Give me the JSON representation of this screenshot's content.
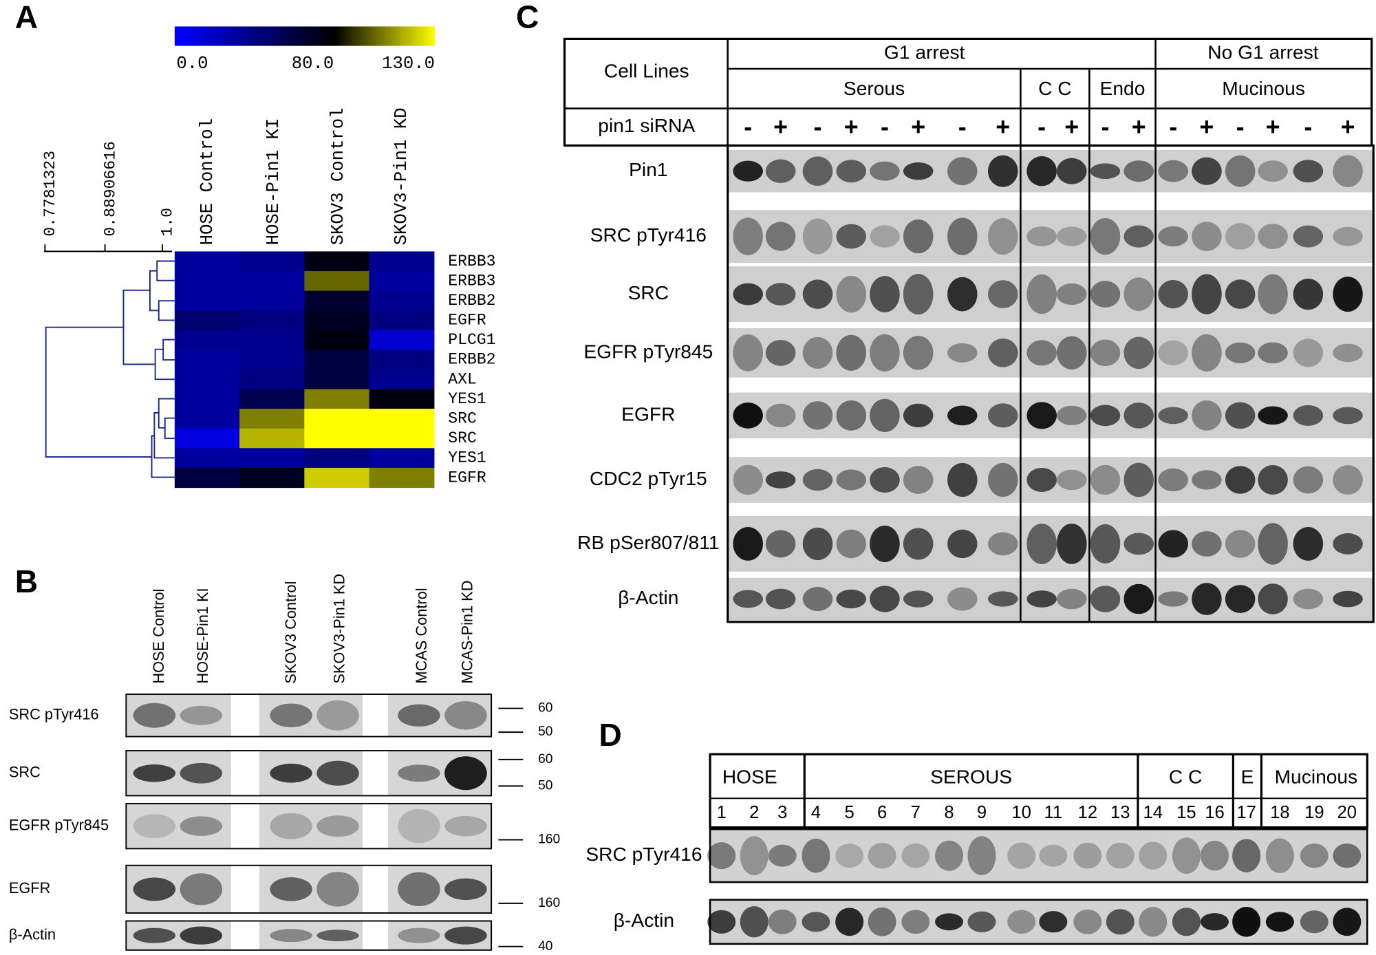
{
  "panel_a": {
    "label": "A",
    "colorbar": {
      "ticks": [
        {
          "value": 0,
          "label": "0.0"
        },
        {
          "value": 80,
          "label": "80.0"
        },
        {
          "value": 130,
          "label": "130.0"
        }
      ],
      "colors": [
        "#0000ff",
        "#000000",
        "#ffff00"
      ]
    },
    "dendrogram_ticks": [
      "0.7781323",
      "0.88906616",
      "1.0"
    ],
    "columns": [
      "HOSE Control",
      "HOSE-Pin1 KI",
      "SKOV3 Control",
      "SKOV3-Pin1 KD"
    ],
    "rows": [
      "ERBB3",
      "ERBB3",
      "ERBB2",
      "EGFR",
      "PLCG1",
      "ERBB2",
      "AXL",
      "YES1",
      "SRC",
      "SRC",
      "YES1",
      "EGFR"
    ],
    "values": [
      [
        30,
        35,
        75,
        35
      ],
      [
        30,
        30,
        100,
        30
      ],
      [
        30,
        30,
        65,
        35
      ],
      [
        45,
        40,
        70,
        40
      ],
      [
        35,
        35,
        75,
        15
      ],
      [
        30,
        35,
        60,
        40
      ],
      [
        30,
        40,
        60,
        35
      ],
      [
        30,
        55,
        105,
        75
      ],
      [
        30,
        105,
        130,
        130
      ],
      [
        10,
        115,
        130,
        130
      ],
      [
        30,
        30,
        40,
        30
      ],
      [
        60,
        70,
        120,
        105
      ]
    ]
  },
  "panel_b": {
    "label": "B",
    "columns": [
      "HOSE Control",
      "HOSE-Pin1 KI",
      "SKOV3 Control",
      "SKOV3-Pin1 KD",
      "MCAS Control",
      "MCAS-Pin1 KD"
    ],
    "rows": [
      "SRC pTyr416",
      "SRC",
      "EGFR pTyr845",
      "EGFR",
      "β-Actin"
    ],
    "markers": [
      "60",
      "50",
      "60",
      "50",
      "160",
      "160",
      "40"
    ]
  },
  "panel_c": {
    "label": "C",
    "corner": "Cell Lines",
    "groups": [
      "G1 arrest",
      "No G1 arrest"
    ],
    "subgroups": [
      "Serous",
      "C  C",
      "Endo",
      "Mucinous"
    ],
    "treatment": "pin1 siRNA",
    "lanes": [
      "-",
      "+",
      "-",
      "+",
      "-",
      "+",
      "-",
      "+",
      "-",
      "+",
      "-",
      "+",
      "-",
      "+",
      "-",
      "+",
      "-",
      "+"
    ],
    "rows": [
      "Pin1",
      "SRC pTyr416",
      "SRC",
      "EGFR pTyr845",
      "EGFR",
      "CDC2 pTyr15",
      "RB pSer807/811",
      "β-Actin"
    ]
  },
  "panel_d": {
    "label": "D",
    "groups": [
      "HOSE",
      "SEROUS",
      "C  C",
      "E",
      "Mucinous"
    ],
    "lanes": [
      "1",
      "2",
      "3",
      "4",
      "5",
      "6",
      "7",
      "8",
      "9",
      "10",
      "11",
      "12",
      "13",
      "14",
      "15",
      "16",
      "17",
      "18",
      "19",
      "20"
    ],
    "rows": [
      "SRC pTyr416",
      "β-Actin"
    ]
  }
}
